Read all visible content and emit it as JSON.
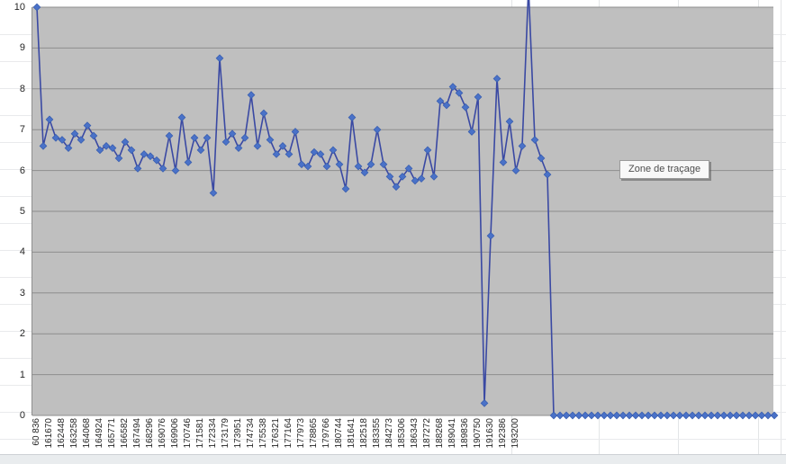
{
  "tooltip": {
    "text": "Zone de traçage"
  },
  "chart_data": {
    "type": "line",
    "title": "",
    "xlabel": "",
    "ylabel": "",
    "ylim": [
      0,
      10
    ],
    "grid": "horizontal-major",
    "legend_position": "none",
    "marker": "diamond",
    "y_tick_labels": [
      "0",
      "1",
      "2",
      "3",
      "4",
      "5",
      "6",
      "7",
      "8",
      "9",
      "10"
    ],
    "x_tick_labels": [
      "60 836",
      "161670",
      "162448",
      "163258",
      "164068",
      "164924",
      "165771",
      "166582",
      "167494",
      "168296",
      "169076",
      "169906",
      "170746",
      "171581",
      "172334",
      "173179",
      "173951",
      "174734",
      "175538",
      "176321",
      "177164",
      "177973",
      "178865",
      "179766",
      "180744",
      "181641",
      "182518",
      "183355",
      "184273",
      "185306",
      "186343",
      "187272",
      "188268",
      "189041",
      "189836",
      "190750",
      "191630",
      "192386",
      "193200"
    ],
    "x_label_every_n_points": 2,
    "x_label_rotation_deg": -90,
    "series": [
      {
        "name": "",
        "values": [
          10,
          6.6,
          7.25,
          6.8,
          6.75,
          6.55,
          6.9,
          6.75,
          7.1,
          6.85,
          6.5,
          6.6,
          6.55,
          6.3,
          6.7,
          6.5,
          6.05,
          6.4,
          6.35,
          6.25,
          6.05,
          6.85,
          6.0,
          7.3,
          6.2,
          6.8,
          6.5,
          6.8,
          5.45,
          8.75,
          6.7,
          6.9,
          6.55,
          6.8,
          7.85,
          6.6,
          7.4,
          6.75,
          6.4,
          6.6,
          6.4,
          6.95,
          6.15,
          6.1,
          6.45,
          6.4,
          6.1,
          6.5,
          6.15,
          5.55,
          7.3,
          6.1,
          5.95,
          6.15,
          7.0,
          6.15,
          5.85,
          5.6,
          5.85,
          6.05,
          5.75,
          5.8,
          6.5,
          5.85,
          7.7,
          7.6,
          8.05,
          7.9,
          7.55,
          6.95,
          7.8,
          0.3,
          4.4,
          8.25,
          6.2,
          7.2,
          6.0,
          6.6,
          10.5,
          6.75,
          6.3,
          5.9,
          0,
          0,
          0,
          0,
          0,
          0,
          0,
          0,
          0,
          0,
          0,
          0,
          0,
          0,
          0,
          0,
          0,
          0,
          0,
          0,
          0,
          0,
          0,
          0,
          0,
          0,
          0,
          0,
          0,
          0,
          0,
          0,
          0,
          0,
          0,
          0
        ]
      }
    ],
    "colors": {
      "plot_background": "#bfbfbf",
      "gridline": "#8e8e8e",
      "line": "#3a49a3",
      "marker_fill": "#4a72c8",
      "marker_stroke": "#3a5fb0",
      "tick_text": "#262626"
    }
  }
}
